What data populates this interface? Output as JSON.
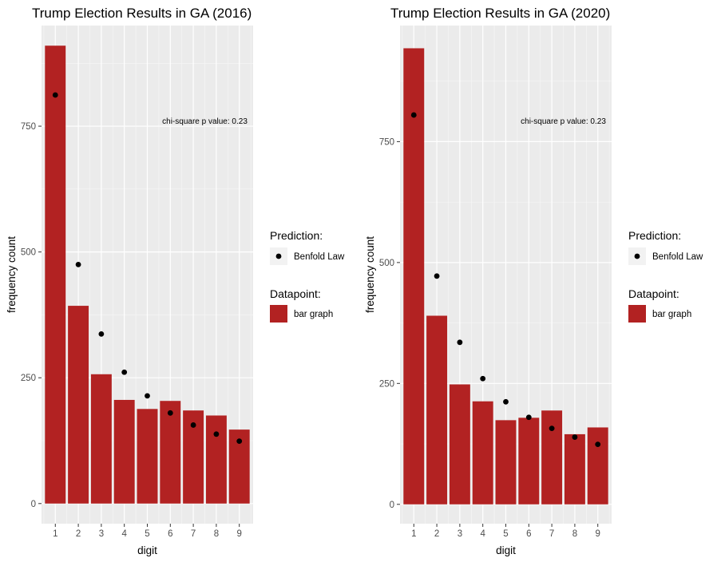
{
  "chart_data": [
    {
      "type": "bar",
      "title": "Trump Election Results in GA (2016)",
      "xlabel": "digit",
      "ylabel": "frequency count",
      "categories": [
        "1",
        "2",
        "3",
        "4",
        "5",
        "6",
        "7",
        "8",
        "9"
      ],
      "series": [
        {
          "name": "bar graph",
          "type": "bar",
          "color": "#b22222",
          "values": [
            910,
            393,
            257,
            206,
            188,
            204,
            185,
            175,
            147
          ]
        },
        {
          "name": "Benfold Law",
          "type": "scatter",
          "color": "#000000",
          "values": [
            812,
            475,
            337,
            261,
            214,
            180,
            156,
            138,
            124
          ]
        }
      ],
      "yticks": [
        0,
        250,
        500,
        750
      ],
      "ylim": [
        -40,
        950
      ],
      "annotation": "chi-square p value: 0.23",
      "grid": true,
      "legend_position": "right",
      "legend": {
        "prediction_title": "Prediction:",
        "prediction_label": "Benfold Law",
        "datapoint_title": "Datapoint:",
        "datapoint_label": "bar graph"
      }
    },
    {
      "type": "bar",
      "title": "Trump Election Results in GA (2020)",
      "xlabel": "digit",
      "ylabel": "frequency count",
      "categories": [
        "1",
        "2",
        "3",
        "4",
        "5",
        "6",
        "7",
        "8",
        "9"
      ],
      "series": [
        {
          "name": "bar graph",
          "type": "bar",
          "color": "#b22222",
          "values": [
            943,
            390,
            248,
            213,
            174,
            179,
            194,
            145,
            159
          ]
        },
        {
          "name": "Benfold Law",
          "type": "scatter",
          "color": "#000000",
          "values": [
            805,
            472,
            335,
            260,
            212,
            180,
            157,
            139,
            124
          ]
        }
      ],
      "yticks": [
        0,
        250,
        500,
        750
      ],
      "ylim": [
        -40,
        990
      ],
      "annotation": "chi-square p value: 0.23",
      "grid": true,
      "legend_position": "right",
      "legend": {
        "prediction_title": "Prediction:",
        "prediction_label": "Benfold Law",
        "datapoint_title": "Datapoint:",
        "datapoint_label": "bar graph"
      }
    }
  ]
}
